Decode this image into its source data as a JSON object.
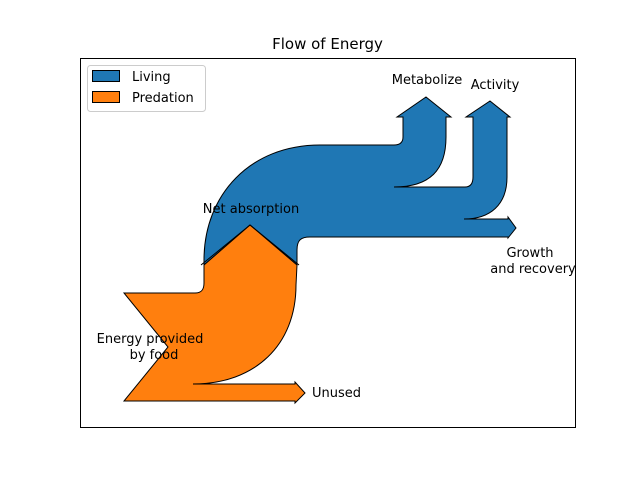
{
  "title": "Flow of Energy",
  "colors": {
    "living": "#1f77b4",
    "predation": "#ff7f0e",
    "stroke": "#000000",
    "background": "#ffffff"
  },
  "legend": {
    "placement": "top-left",
    "entries": [
      {
        "label": "Living",
        "color": "#1f77b4"
      },
      {
        "label": "Predation",
        "color": "#ff7f0e"
      }
    ]
  },
  "labels": {
    "energy_provided": [
      "Energy provided",
      "by food"
    ],
    "net_absorption": "Net absorption",
    "unused": "Unused",
    "metabolize": "Metabolize",
    "activity": "Activity",
    "growth": [
      "Growth",
      "and recovery"
    ]
  }
}
